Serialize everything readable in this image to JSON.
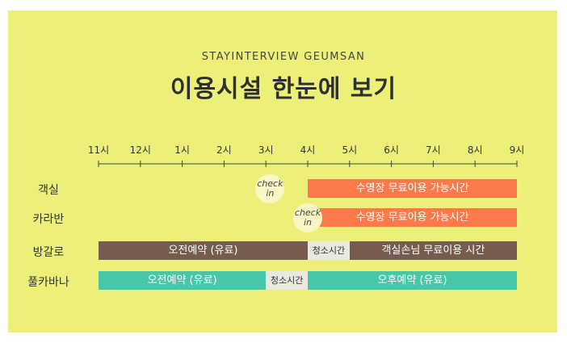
{
  "header": {
    "subtitle": "STAYINTERVIEW GEUMSAN",
    "title": "이용시설 한눈에 보기"
  },
  "hours": [
    "11시",
    "12시",
    "1시",
    "2시",
    "3시",
    "4시",
    "5시",
    "6시",
    "7시",
    "8시",
    "9시"
  ],
  "rows": [
    {
      "label": "객실",
      "segments": [
        {
          "start": 5,
          "end": 10,
          "text": "수영장 무료이용 가능시간",
          "color": "orange"
        }
      ],
      "checkin": 4.1
    },
    {
      "label": "카라반",
      "segments": [
        {
          "start": 5,
          "end": 10,
          "text": "수영장 무료이용 가능시간",
          "color": "orange"
        }
      ],
      "checkin": 5.0
    },
    {
      "label": "방갈로",
      "segments": [
        {
          "start": 0,
          "end": 5,
          "text": "오전예약 (유료)",
          "color": "brown"
        },
        {
          "start": 5,
          "end": 6,
          "text": "청소시간",
          "color": "gray"
        },
        {
          "start": 6,
          "end": 10,
          "text": "객실손님 무료이용 시간",
          "color": "brown"
        }
      ]
    },
    {
      "label": "풀카바나",
      "segments": [
        {
          "start": 0,
          "end": 4,
          "text": "오전예약 (유료)",
          "color": "teal"
        },
        {
          "start": 4,
          "end": 5,
          "text": "청소시간",
          "color": "gray"
        },
        {
          "start": 5,
          "end": 10,
          "text": "오후예약 (유료)",
          "color": "teal"
        }
      ]
    }
  ],
  "checkin_text": {
    "line1": "check",
    "line2": "in"
  },
  "colors": {
    "panel": "#ecf078",
    "orange": "#fb7a4b",
    "brown": "#765c4f",
    "teal": "#47c7a8",
    "gray": "#e9e9e2"
  }
}
